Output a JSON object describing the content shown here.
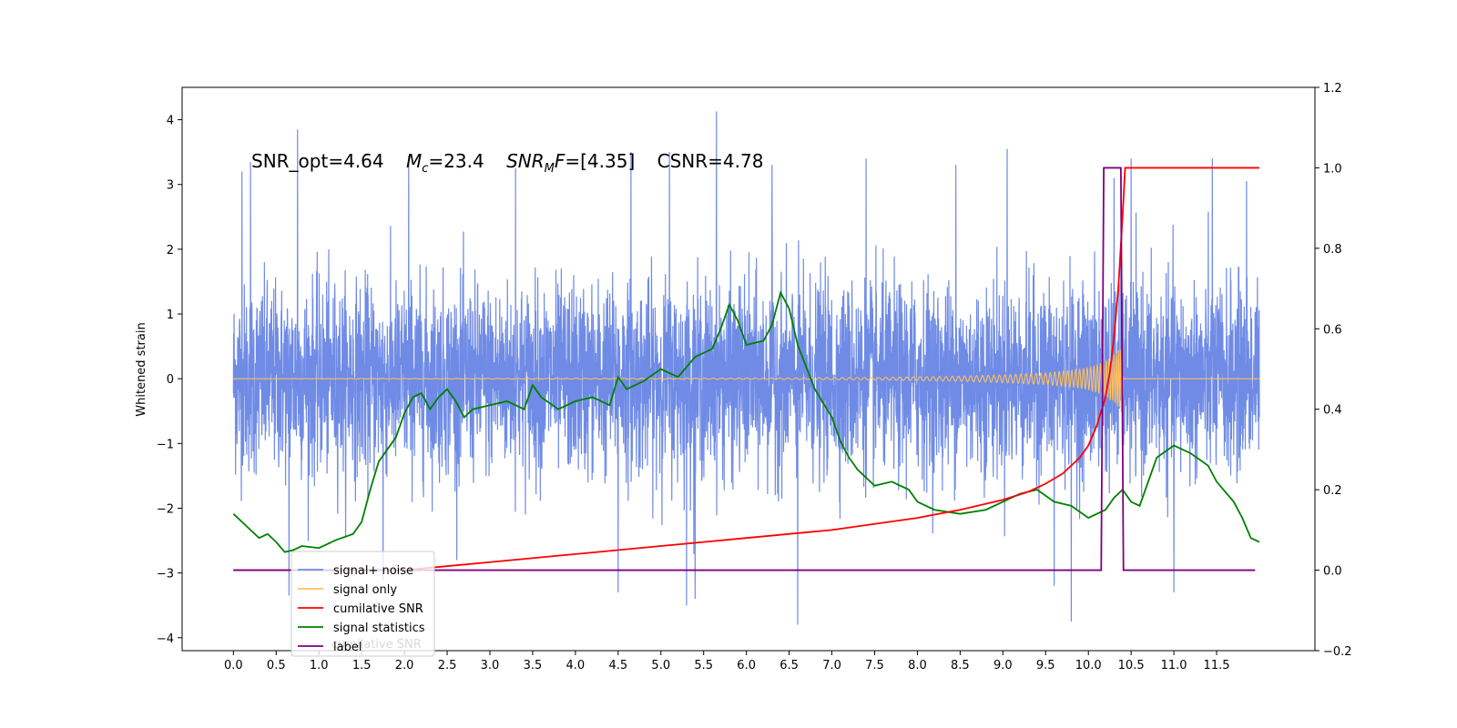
{
  "chart_data": {
    "type": "line",
    "annotation": {
      "snr_opt": "SNR_opt=4.64",
      "mc_symbol": "M",
      "mc_sub": "c",
      "mc_value": "=23.4",
      "snrmf_symbol": "SNR",
      "snrmf_sub": "M",
      "snrmf_f": "F",
      "snrmf_value": "=[4.35]",
      "csnr": "CSNR=4.78"
    },
    "ylabel_left": "Whitened strain",
    "xlim": [
      -0.6,
      12.65
    ],
    "ylim_left": [
      -4.2,
      4.5
    ],
    "ylim_right": [
      -0.2,
      1.2
    ],
    "x_ticks": [
      0.0,
      0.5,
      1.0,
      1.5,
      2.0,
      2.5,
      3.0,
      3.5,
      4.0,
      4.5,
      5.0,
      5.5,
      6.0,
      6.5,
      7.0,
      7.5,
      8.0,
      8.5,
      9.0,
      9.5,
      10.0,
      10.5,
      11.0,
      11.5
    ],
    "x_tick_labels": [
      "0.0",
      "0.5",
      "1.0",
      "1.5",
      "2.0",
      "2.5",
      "3.0",
      "3.5",
      "4.0",
      "4.5",
      "5.0",
      "5.5",
      "6.0",
      "6.5",
      "7.0",
      "7.5",
      "8.0",
      "8.5",
      "9.0",
      "9.5",
      "10.0",
      "10.5",
      "11.0",
      "11.5"
    ],
    "y_left_ticks": [
      -4,
      -3,
      -2,
      -1,
      0,
      1,
      2,
      3,
      4
    ],
    "y_left_tick_labels": [
      "−4",
      "−3",
      "−2",
      "−1",
      "0",
      "1",
      "2",
      "3",
      "4"
    ],
    "y_right_ticks": [
      -0.2,
      0.0,
      0.2,
      0.4,
      0.6,
      0.8,
      1.0,
      1.2
    ],
    "y_right_tick_labels": [
      "−0.2",
      "0.0",
      "0.2",
      "0.4",
      "0.6",
      "0.8",
      "1.0",
      "1.2"
    ],
    "grid": false,
    "legend": {
      "placement": "lower-left",
      "entries": [
        "signal+ noise",
        "signal only",
        "cumilative SNR",
        "signal statistics",
        "label"
      ],
      "ghost_text": "cumilative SNR"
    },
    "colors": {
      "noise": "#6f8be6",
      "signal": "#ffbf5a",
      "cumulative": "#ff0000",
      "statistics": "#007f00",
      "label": "#7f007f"
    },
    "series": [
      {
        "name": "signal+ noise",
        "axis": "left",
        "x_range": [
          0.0,
          12.0
        ],
        "typical_band": [
          -1.7,
          1.7
        ],
        "peak_values": [
          [
            0.1,
            3.2
          ],
          [
            0.2,
            3.35
          ],
          [
            0.75,
            3.85
          ],
          [
            2.05,
            3.45
          ],
          [
            3.3,
            3.25
          ],
          [
            4.65,
            3.5
          ],
          [
            5.1,
            3.5
          ],
          [
            5.65,
            4.13
          ],
          [
            6.3,
            3.3
          ],
          [
            7.4,
            3.4
          ],
          [
            8.45,
            3.3
          ],
          [
            9.05,
            3.55
          ],
          [
            10.3,
            3.1
          ],
          [
            10.5,
            3.4
          ],
          [
            11.45,
            3.4
          ],
          [
            11.85,
            3.05
          ],
          [
            0.65,
            -3.35
          ],
          [
            1.75,
            -3.1
          ],
          [
            4.5,
            -3.3
          ],
          [
            5.3,
            -3.5
          ],
          [
            5.4,
            -3.4
          ],
          [
            6.6,
            -3.8
          ],
          [
            9.6,
            -3.2
          ],
          [
            9.8,
            -3.75
          ],
          [
            11.0,
            -3.3
          ]
        ]
      },
      {
        "name": "signal only",
        "axis": "left",
        "x": [
          0.0,
          6.0,
          7.5,
          8.5,
          9.0,
          9.5,
          9.8,
          10.0,
          10.1,
          10.2,
          10.3,
          10.35,
          10.4,
          10.41,
          12.0
        ],
        "amplitude": [
          0.0,
          0.01,
          0.02,
          0.04,
          0.06,
          0.09,
          0.13,
          0.17,
          0.22,
          0.28,
          0.38,
          0.45,
          0.55,
          0.0,
          0.0
        ]
      },
      {
        "name": "cumilative SNR",
        "axis": "right",
        "x": [
          0.0,
          1.0,
          2.0,
          3.0,
          4.0,
          5.0,
          6.0,
          7.0,
          7.5,
          8.0,
          8.5,
          9.0,
          9.3,
          9.5,
          9.7,
          9.9,
          10.0,
          10.1,
          10.2,
          10.25,
          10.3,
          10.35,
          10.4,
          10.43,
          12.0
        ],
        "y": [
          0.0,
          0.0,
          0.0,
          0.02,
          0.04,
          0.06,
          0.08,
          0.1,
          0.115,
          0.13,
          0.15,
          0.175,
          0.195,
          0.215,
          0.24,
          0.28,
          0.31,
          0.36,
          0.43,
          0.49,
          0.58,
          0.7,
          0.88,
          1.0,
          1.0
        ]
      },
      {
        "name": "signal statistics",
        "axis": "right",
        "x": [
          0.0,
          0.1,
          0.2,
          0.3,
          0.4,
          0.5,
          0.6,
          0.7,
          0.8,
          1.0,
          1.2,
          1.4,
          1.5,
          1.6,
          1.7,
          1.8,
          1.9,
          2.0,
          2.1,
          2.2,
          2.3,
          2.4,
          2.5,
          2.6,
          2.7,
          2.8,
          3.0,
          3.2,
          3.4,
          3.5,
          3.6,
          3.8,
          4.0,
          4.2,
          4.4,
          4.5,
          4.6,
          4.8,
          5.0,
          5.2,
          5.4,
          5.6,
          5.7,
          5.8,
          5.9,
          6.0,
          6.2,
          6.3,
          6.4,
          6.5,
          6.6,
          6.8,
          7.0,
          7.1,
          7.2,
          7.3,
          7.5,
          7.7,
          7.9,
          8.0,
          8.2,
          8.5,
          8.8,
          9.0,
          9.2,
          9.4,
          9.6,
          9.8,
          10.0,
          10.2,
          10.3,
          10.4,
          10.5,
          10.6,
          10.8,
          11.0,
          11.1,
          11.2,
          11.4,
          11.5,
          11.7,
          11.8,
          11.9,
          12.0
        ],
        "y": [
          0.14,
          0.12,
          0.1,
          0.08,
          0.09,
          0.07,
          0.045,
          0.05,
          0.06,
          0.055,
          0.075,
          0.09,
          0.12,
          0.2,
          0.27,
          0.3,
          0.33,
          0.39,
          0.43,
          0.44,
          0.4,
          0.43,
          0.45,
          0.42,
          0.38,
          0.4,
          0.41,
          0.42,
          0.4,
          0.46,
          0.43,
          0.4,
          0.42,
          0.43,
          0.41,
          0.48,
          0.45,
          0.47,
          0.5,
          0.48,
          0.53,
          0.55,
          0.6,
          0.66,
          0.62,
          0.56,
          0.57,
          0.61,
          0.69,
          0.65,
          0.56,
          0.45,
          0.38,
          0.32,
          0.28,
          0.25,
          0.21,
          0.22,
          0.2,
          0.17,
          0.15,
          0.14,
          0.15,
          0.17,
          0.19,
          0.2,
          0.17,
          0.16,
          0.13,
          0.15,
          0.18,
          0.2,
          0.17,
          0.16,
          0.28,
          0.31,
          0.3,
          0.29,
          0.26,
          0.22,
          0.17,
          0.13,
          0.08,
          0.07
        ]
      },
      {
        "name": "label",
        "axis": "right",
        "x": [
          0.0,
          10.15,
          10.18,
          10.38,
          10.41,
          11.95
        ],
        "y": [
          0.0,
          0.0,
          1.0,
          1.0,
          0.0,
          0.0
        ]
      }
    ]
  }
}
